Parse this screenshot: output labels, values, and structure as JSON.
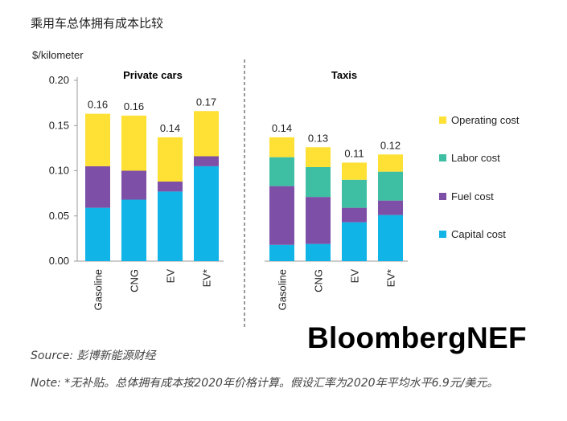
{
  "page": {
    "title": "乘用车总体拥有成本比较",
    "source": "Source: 彭博新能源财经",
    "note": "Note: *无补贴。总体拥有成本按2020年价格计算。假设汇率为2020年平均水平6.9元/美元。",
    "brand": "BloombergNEF"
  },
  "chart_data": {
    "type": "bar",
    "stacked": true,
    "ylabel": "$/kilometer",
    "ylim": [
      0,
      0.2
    ],
    "yticks": [
      "0.00",
      "0.05",
      "0.10",
      "0.15",
      "0.20"
    ],
    "groups": [
      {
        "title": "Private cars",
        "categories": [
          "Gasoline",
          "CNG",
          "EV",
          "EV*"
        ],
        "totals": [
          "0.16",
          "0.16",
          "0.14",
          "0.17"
        ],
        "series": [
          {
            "name": "Capital cost",
            "values": [
              0.059,
              0.068,
              0.077,
              0.105
            ]
          },
          {
            "name": "Fuel cost",
            "values": [
              0.046,
              0.032,
              0.011,
              0.011
            ]
          },
          {
            "name": "Labor cost",
            "values": [
              0,
              0,
              0,
              0
            ]
          },
          {
            "name": "Operating cost",
            "values": [
              0.058,
              0.061,
              0.049,
              0.05
            ]
          }
        ]
      },
      {
        "title": "Taxis",
        "categories": [
          "Gasoline",
          "CNG",
          "EV",
          "EV*"
        ],
        "totals": [
          "0.14",
          "0.13",
          "0.11",
          "0.12"
        ],
        "series": [
          {
            "name": "Capital cost",
            "values": [
              0.018,
              0.019,
              0.043,
              0.051
            ]
          },
          {
            "name": "Fuel cost",
            "values": [
              0.065,
              0.052,
              0.016,
              0.016
            ]
          },
          {
            "name": "Labor cost",
            "values": [
              0.032,
              0.033,
              0.031,
              0.032
            ]
          },
          {
            "name": "Operating cost",
            "values": [
              0.022,
              0.022,
              0.019,
              0.019
            ]
          }
        ]
      }
    ],
    "legend": [
      {
        "name": "Operating cost",
        "color": "#FFE135"
      },
      {
        "name": "Labor cost",
        "color": "#3EBFA3"
      },
      {
        "name": "Fuel cost",
        "color": "#7E4FA6"
      },
      {
        "name": "Capital cost",
        "color": "#10B4E6"
      }
    ],
    "legend_position": "right",
    "grid": false
  }
}
